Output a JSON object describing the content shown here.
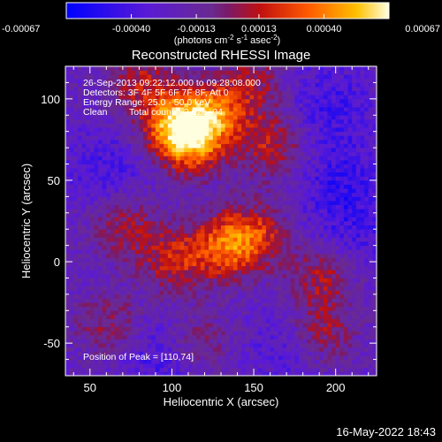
{
  "chart_data": {
    "type": "heatmap",
    "title": "Reconstructed RHESSI Image",
    "xlabel": "Heliocentric X (arcsec)",
    "ylabel": "Heliocentric Y (arcsec)",
    "xlim": [
      35,
      225
    ],
    "ylim": [
      -70,
      120
    ],
    "x_ticks": [
      50,
      100,
      150,
      200
    ],
    "y_ticks": [
      -50,
      0,
      50,
      100
    ],
    "colorbar": {
      "ticks": [
        "-0.00067",
        "-0.00040",
        "-0.00013",
        "0.00013",
        "0.00040",
        "0.00067"
      ],
      "values": [
        -0.00067,
        -0.0004,
        -0.00013,
        0.00013,
        0.0004,
        0.00067
      ],
      "range": [
        -0.00067,
        0.00067
      ],
      "unit_text": "(photons cm",
      "unit_sup1": "-2",
      "unit_mid1": " s",
      "unit_sup2": "-1",
      "unit_mid2": " asec",
      "unit_sup3": "-2",
      "unit_end": ")"
    },
    "annotations": {
      "time_range": "26-Sep-2013 09:22:12.000 to 09:28:08.000",
      "detectors": "Detectors: 3F 4F 5F 6F 7F 8F, Att 0",
      "energy": "Energy Range: 25.0 - 50.0 keV",
      "clean_label": "Clean",
      "total_counts": "Total counts: 2.02e+04",
      "peak": "Position of Peak = [110,74]"
    },
    "peak": [
      110,
      74
    ],
    "hotspots": [
      {
        "x": 110,
        "y": 74,
        "value": 0.00067
      },
      {
        "x": 125,
        "y": 90,
        "value": 0.0005
      },
      {
        "x": 98,
        "y": 85,
        "value": 0.00045
      },
      {
        "x": 130,
        "y": 8,
        "value": 0.00048
      },
      {
        "x": 150,
        "y": 15,
        "value": 0.0004
      },
      {
        "x": 100,
        "y": 0,
        "value": 0.00035
      },
      {
        "x": 70,
        "y": 20,
        "value": 0.0003
      },
      {
        "x": 160,
        "y": 70,
        "value": 0.00035
      },
      {
        "x": 190,
        "y": -10,
        "value": 0.0003
      },
      {
        "x": 190,
        "y": -45,
        "value": 0.0003
      },
      {
        "x": 60,
        "y": -40,
        "value": 0.00025
      },
      {
        "x": 115,
        "y": -50,
        "value": 0.0002
      },
      {
        "x": 80,
        "y": 110,
        "value": 0.0003
      },
      {
        "x": 150,
        "y": 108,
        "value": 0.00025
      }
    ],
    "coldspots": [
      {
        "x": 200,
        "y": 50,
        "value": -0.00035
      },
      {
        "x": 60,
        "y": 55,
        "value": -0.0003
      },
      {
        "x": 195,
        "y": 95,
        "value": -0.00035
      },
      {
        "x": 90,
        "y": -62,
        "value": -0.0003
      },
      {
        "x": 170,
        "y": -55,
        "value": -0.00025
      },
      {
        "x": 210,
        "y": 20,
        "value": -0.0003
      }
    ]
  },
  "timestamp": "16-May-2022 18:43"
}
